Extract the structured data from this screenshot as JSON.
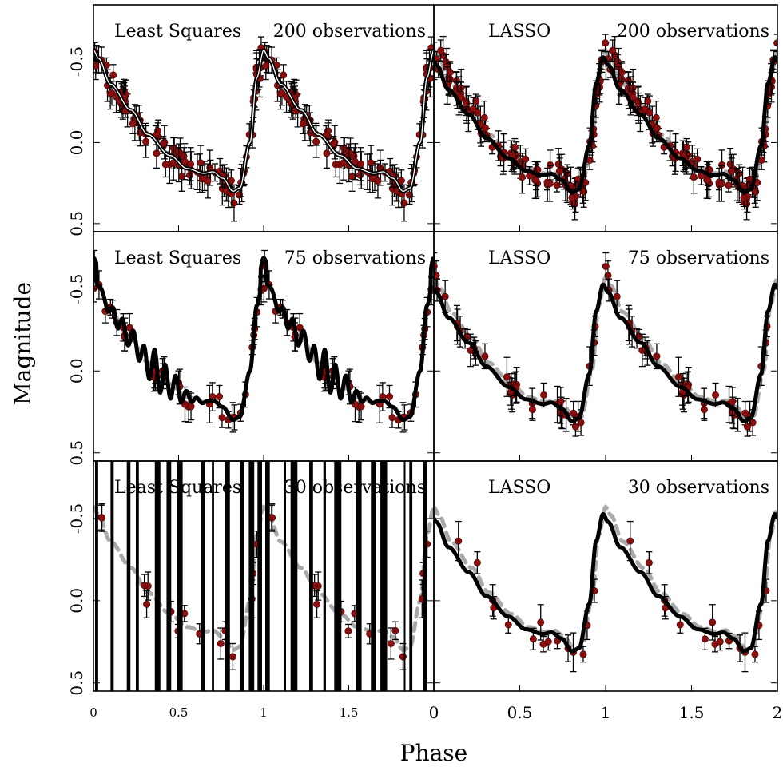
{
  "figure": {
    "xlabel": "Phase",
    "ylabel": "Magnitude"
  },
  "chart_data": [
    {
      "type": "scatter",
      "method": "Least Squares",
      "observations_label": "200 observations",
      "n_observations": 200,
      "xlim": [
        0,
        2
      ],
      "ylim": [
        0.55,
        -0.85
      ],
      "y_ticks": [
        "-0.5",
        "0.0",
        "0.5"
      ],
      "x_ticks": [],
      "fit": "white-outlined",
      "diverges": false
    },
    {
      "type": "scatter",
      "method": "LASSO",
      "observations_label": "200 observations",
      "n_observations": 200,
      "xlim": [
        0,
        2
      ],
      "ylim": [
        0.55,
        -0.85
      ],
      "y_ticks": [],
      "x_ticks": [],
      "fit": "smooth",
      "diverges": false
    },
    {
      "type": "scatter",
      "method": "Least Squares",
      "observations_label": "75 observations",
      "n_observations": 75,
      "xlim": [
        0,
        2
      ],
      "ylim": [
        0.55,
        -0.85
      ],
      "y_ticks": [
        "-0.5",
        "0.0",
        "0.5"
      ],
      "x_ticks": [],
      "fit": "oscillating",
      "diverges": false
    },
    {
      "type": "scatter",
      "method": "LASSO",
      "observations_label": "75 observations",
      "n_observations": 75,
      "xlim": [
        0,
        2
      ],
      "ylim": [
        0.55,
        -0.85
      ],
      "y_ticks": [],
      "x_ticks": [],
      "fit": "smooth",
      "diverges": false
    },
    {
      "type": "scatter",
      "method": "Least Squares",
      "observations_label": "30 observations",
      "n_observations": 30,
      "xlim": [
        0,
        2
      ],
      "ylim": [
        0.55,
        -0.85
      ],
      "y_ticks": [
        "-0.5",
        "0.0",
        "0.5"
      ],
      "x_ticks": [
        "0",
        "0.5",
        "1",
        "1.5"
      ],
      "fit": "divergent",
      "diverges": true
    },
    {
      "type": "scatter",
      "method": "LASSO",
      "observations_label": "30 observations",
      "n_observations": 30,
      "xlim": [
        0,
        2
      ],
      "ylim": [
        0.55,
        -0.85
      ],
      "y_ticks": [],
      "x_ticks": [
        "0",
        "0.5",
        "1",
        "1.5",
        "2"
      ],
      "fit": "smooth",
      "diverges": false
    }
  ],
  "colors": {
    "observation": "#8b0e0e",
    "true_curve": "#a9a9a9",
    "fit": "#000000"
  }
}
